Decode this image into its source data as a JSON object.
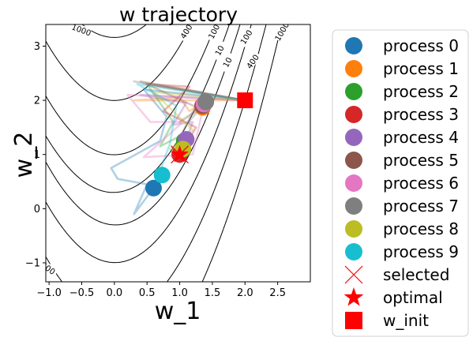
{
  "chart_data": {
    "type": "scatter",
    "title": "w trajectory",
    "xlabel": "w_1",
    "ylabel": "w_2",
    "xlim": [
      -1.05,
      3.0
    ],
    "ylim": [
      -1.35,
      3.4
    ],
    "xticks": [
      -1.0,
      -0.5,
      0.0,
      0.5,
      1.0,
      1.5,
      2.0,
      2.5
    ],
    "xtick_labels": [
      "−1.0",
      "−0.5",
      "0.0",
      "0.5",
      "1.0",
      "1.5",
      "2.0",
      "2.5"
    ],
    "yticks": [
      -1,
      0,
      1,
      2,
      3
    ],
    "ytick_labels": [
      "−1",
      "0",
      "1",
      "2",
      "3"
    ],
    "grid": false,
    "legend_position": "outside-right",
    "contour_levels": [
      10,
      100,
      400,
      1000
    ],
    "contour_labels": [
      "1000",
      "400",
      "100",
      "10",
      "10",
      "100",
      "400",
      "1000",
      "400"
    ],
    "series": [
      {
        "name": "process 0",
        "color": "#1f77b4",
        "final": [
          0.6,
          0.38
        ],
        "trajectory": [
          [
            2.0,
            2.0
          ],
          [
            0.45,
            2.2
          ],
          [
            0.8,
            1.7
          ],
          [
            0.7,
            1.25
          ],
          [
            -0.05,
            0.75
          ],
          [
            0.05,
            0.55
          ],
          [
            0.5,
            0.45
          ],
          [
            0.3,
            -0.1
          ],
          [
            0.6,
            0.38
          ]
        ]
      },
      {
        "name": "process 1",
        "color": "#ff7f0e",
        "final": [
          1.35,
          1.87
        ],
        "trajectory": [
          [
            2.0,
            2.0
          ],
          [
            0.3,
            2.0
          ],
          [
            1.0,
            2.05
          ],
          [
            1.15,
            1.8
          ],
          [
            1.4,
            2.0
          ],
          [
            1.35,
            1.87
          ]
        ]
      },
      {
        "name": "process 2",
        "color": "#2ca02c",
        "final": [
          1.07,
          1.25
        ],
        "trajectory": [
          [
            2.0,
            2.0
          ],
          [
            0.5,
            2.3
          ],
          [
            0.9,
            1.6
          ],
          [
            0.7,
            1.15
          ],
          [
            1.1,
            1.4
          ],
          [
            1.07,
            1.25
          ]
        ]
      },
      {
        "name": "process 3",
        "color": "#d62728",
        "final": [
          1.0,
          1.0
        ],
        "trajectory": [
          [
            2.0,
            2.0
          ],
          [
            0.5,
            2.3
          ],
          [
            1.15,
            2.25
          ],
          [
            0.75,
            1.8
          ],
          [
            1.25,
            1.5
          ],
          [
            1.0,
            1.0
          ]
        ]
      },
      {
        "name": "process 4",
        "color": "#9467bd",
        "final": [
          1.1,
          1.28
        ],
        "trajectory": [
          [
            2.0,
            2.0
          ],
          [
            0.4,
            2.1
          ],
          [
            1.1,
            1.95
          ],
          [
            0.9,
            1.55
          ],
          [
            1.2,
            1.6
          ],
          [
            1.1,
            1.28
          ]
        ]
      },
      {
        "name": "process 5",
        "color": "#8c564b",
        "final": [
          1.35,
          1.9
        ],
        "trajectory": [
          [
            2.0,
            2.0
          ],
          [
            0.4,
            2.35
          ],
          [
            1.3,
            1.85
          ],
          [
            1.0,
            1.6
          ],
          [
            1.45,
            1.95
          ],
          [
            1.35,
            1.9
          ]
        ]
      },
      {
        "name": "process 6",
        "color": "#e377c2",
        "final": [
          1.37,
          1.93
        ],
        "trajectory": [
          [
            2.0,
            2.0
          ],
          [
            0.2,
            2.1
          ],
          [
            0.55,
            1.6
          ],
          [
            1.05,
            1.6
          ],
          [
            0.45,
            0.95
          ],
          [
            1.2,
            1.0
          ],
          [
            1.37,
            1.93
          ]
        ]
      },
      {
        "name": "process 7",
        "color": "#7f7f7f",
        "final": [
          1.4,
          1.97
        ],
        "trajectory": [
          [
            2.0,
            2.0
          ],
          [
            0.3,
            2.35
          ],
          [
            1.35,
            2.15
          ],
          [
            1.0,
            1.3
          ],
          [
            1.1,
            1.55
          ],
          [
            1.4,
            1.97
          ]
        ]
      },
      {
        "name": "process 8",
        "color": "#bcbd22",
        "final": [
          1.05,
          1.1
        ],
        "trajectory": [
          [
            2.0,
            2.0
          ],
          [
            0.6,
            2.15
          ],
          [
            1.2,
            1.45
          ],
          [
            0.85,
            1.1
          ],
          [
            1.05,
            1.1
          ]
        ]
      },
      {
        "name": "process 9",
        "color": "#17becf",
        "final": [
          0.73,
          0.62
        ],
        "trajectory": [
          [
            2.0,
            2.0
          ],
          [
            0.35,
            2.3
          ],
          [
            0.95,
            1.9
          ],
          [
            0.85,
            1.2
          ],
          [
            0.7,
            0.7
          ],
          [
            0.73,
            0.62
          ]
        ]
      }
    ],
    "selected": {
      "name": "selected",
      "color": "#ff0000",
      "point": [
        1.0,
        1.0
      ]
    },
    "optimal": {
      "name": "optimal",
      "color": "#ff0000",
      "point": [
        1.0,
        1.0
      ]
    },
    "w_init": {
      "name": "w_init",
      "color": "#ff0000",
      "point": [
        2.0,
        2.0
      ]
    }
  }
}
